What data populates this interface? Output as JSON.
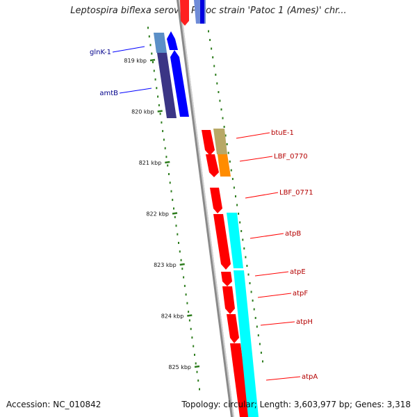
{
  "title": "Leptospira biflexa serovar Patoc strain 'Patoc 1 (Ames)' chr...",
  "footer": {
    "accession": "Accession: NC_010842",
    "summary": "Topology: circular; Length: 3,603,977 bp; Genes: 3,318"
  },
  "ruler": {
    "tick_labels": [
      {
        "kbp": 819,
        "label": "819 kbp"
      },
      {
        "kbp": 820,
        "label": "820 kbp"
      },
      {
        "kbp": 821,
        "label": "821 kbp"
      },
      {
        "kbp": 822,
        "label": "822 kbp"
      },
      {
        "kbp": 823,
        "label": "823 kbp"
      },
      {
        "kbp": 824,
        "label": "824 kbp"
      },
      {
        "kbp": 825,
        "label": "825 kbp"
      }
    ],
    "color": "#2e7d1e"
  },
  "colors": {
    "backbone": "#8a8a8a",
    "reverse_gene": "#0000ff",
    "reverse_gene_dark": "#3b3585",
    "reverse_gene_light": "#5b8fc7",
    "forward_gene": "#ff0000",
    "forward_product_tan": "#b8a866",
    "forward_product_orange": "#ff8c00",
    "forward_product_cyan": "#00ffff",
    "label_reverse": "#00008b",
    "label_forward": "#b40000"
  },
  "genes": [
    {
      "name": "glnK-1",
      "strand": "reverse"
    },
    {
      "name": "amtB",
      "strand": "reverse"
    },
    {
      "name": "btuE-1",
      "strand": "forward"
    },
    {
      "name": "LBF_0770",
      "strand": "forward"
    },
    {
      "name": "LBF_0771",
      "strand": "forward"
    },
    {
      "name": "atpB",
      "strand": "forward"
    },
    {
      "name": "atpE",
      "strand": "forward"
    },
    {
      "name": "atpF",
      "strand": "forward"
    },
    {
      "name": "atpH",
      "strand": "forward"
    },
    {
      "name": "atpA",
      "strand": "forward"
    }
  ]
}
